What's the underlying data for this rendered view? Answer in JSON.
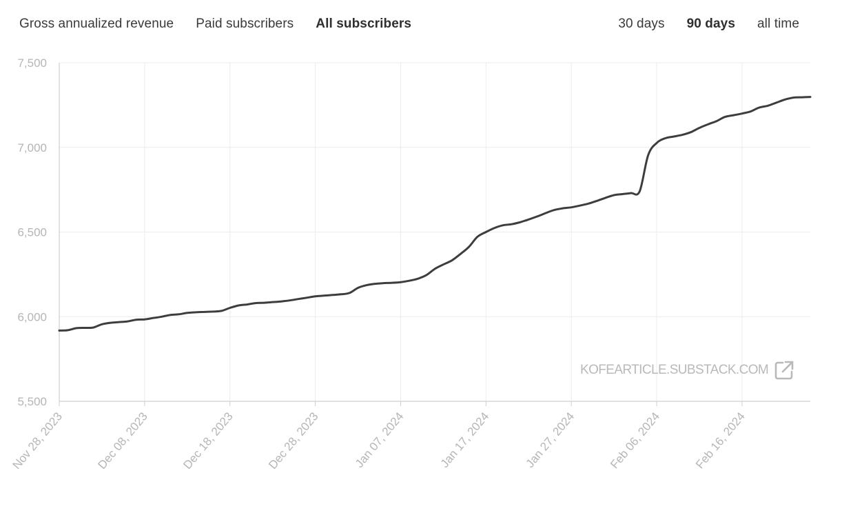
{
  "tabs": {
    "metric": [
      {
        "label": "Gross annualized revenue",
        "active": false
      },
      {
        "label": "Paid subscribers",
        "active": false
      },
      {
        "label": "All subscribers",
        "active": true
      }
    ],
    "range": [
      {
        "label": "30 days",
        "active": false
      },
      {
        "label": "90 days",
        "active": true
      },
      {
        "label": "all time",
        "active": false
      }
    ]
  },
  "watermark": {
    "text": "KOFEARTICLE.SUBSTACK.COM",
    "icon": "external-link-icon"
  },
  "colors": {
    "line": "#3d3d3d",
    "grid": "#ececec",
    "axis": "#cfcfcf",
    "tick_text": "#b5b5b5"
  },
  "chart_data": {
    "type": "line",
    "title": "",
    "xlabel": "",
    "ylabel": "",
    "ylim": [
      5500,
      7500
    ],
    "yticks": [
      5500,
      6000,
      6500,
      7000,
      7500
    ],
    "ytick_labels": [
      "5,500",
      "6,000",
      "6,500",
      "7,000",
      "7,500"
    ],
    "xlim": [
      "2023-11-28",
      "2024-02-24"
    ],
    "xticks": [
      "2023-11-28",
      "2023-12-08",
      "2023-12-18",
      "2023-12-28",
      "2024-01-07",
      "2024-01-17",
      "2024-01-27",
      "2024-02-06",
      "2024-02-16"
    ],
    "xtick_labels": [
      "Nov 28, 2023",
      "Dec 08, 2023",
      "Dec 18, 2023",
      "Dec 28, 2023",
      "Jan 07, 2024",
      "Jan 17, 2024",
      "Jan 27, 2024",
      "Feb 06, 2024",
      "Feb 16, 2024"
    ],
    "grid": true,
    "series": [
      {
        "x": [
          "2023-11-28",
          "2023-11-29",
          "2023-11-30",
          "2023-12-01",
          "2023-12-02",
          "2023-12-03",
          "2023-12-04",
          "2023-12-05",
          "2023-12-06",
          "2023-12-07",
          "2023-12-08",
          "2023-12-09",
          "2023-12-10",
          "2023-12-11",
          "2023-12-12",
          "2023-12-13",
          "2023-12-14",
          "2023-12-15",
          "2023-12-16",
          "2023-12-17",
          "2023-12-18",
          "2023-12-19",
          "2023-12-20",
          "2023-12-21",
          "2023-12-22",
          "2023-12-23",
          "2023-12-24",
          "2023-12-25",
          "2023-12-26",
          "2023-12-27",
          "2023-12-28",
          "2023-12-29",
          "2023-12-30",
          "2023-12-31",
          "2024-01-01",
          "2024-01-02",
          "2024-01-03",
          "2024-01-04",
          "2024-01-05",
          "2024-01-06",
          "2024-01-07",
          "2024-01-08",
          "2024-01-09",
          "2024-01-10",
          "2024-01-11",
          "2024-01-12",
          "2024-01-13",
          "2024-01-14",
          "2024-01-15",
          "2024-01-16",
          "2024-01-17",
          "2024-01-18",
          "2024-01-19",
          "2024-01-20",
          "2024-01-21",
          "2024-01-22",
          "2024-01-23",
          "2024-01-24",
          "2024-01-25",
          "2024-01-26",
          "2024-01-27",
          "2024-01-28",
          "2024-01-29",
          "2024-01-30",
          "2024-01-31",
          "2024-02-01",
          "2024-02-02",
          "2024-02-03",
          "2024-02-04",
          "2024-02-05",
          "2024-02-06",
          "2024-02-07",
          "2024-02-08",
          "2024-02-09",
          "2024-02-10",
          "2024-02-11",
          "2024-02-12",
          "2024-02-13",
          "2024-02-14",
          "2024-02-15",
          "2024-02-16",
          "2024-02-17",
          "2024-02-18",
          "2024-02-19",
          "2024-02-20",
          "2024-02-21",
          "2024-02-22",
          "2024-02-23",
          "2024-02-24"
        ],
        "values": [
          5918,
          5920,
          5932,
          5934,
          5936,
          5955,
          5964,
          5968,
          5972,
          5982,
          5984,
          5992,
          6000,
          6010,
          6014,
          6022,
          6026,
          6028,
          6030,
          6034,
          6052,
          6066,
          6072,
          6080,
          6082,
          6086,
          6090,
          6096,
          6104,
          6112,
          6120,
          6124,
          6128,
          6132,
          6140,
          6170,
          6186,
          6194,
          6198,
          6200,
          6204,
          6212,
          6224,
          6245,
          6282,
          6308,
          6332,
          6370,
          6412,
          6472,
          6500,
          6524,
          6540,
          6546,
          6558,
          6574,
          6592,
          6612,
          6630,
          6640,
          6646,
          6656,
          6668,
          6684,
          6702,
          6718,
          6724,
          6730,
          6740,
          6954,
          7026,
          7054,
          7064,
          7074,
          7090,
          7115,
          7136,
          7155,
          7180,
          7190,
          7200,
          7212,
          7235,
          7246,
          7264,
          7282,
          7294,
          7296,
          7298
        ]
      }
    ]
  }
}
